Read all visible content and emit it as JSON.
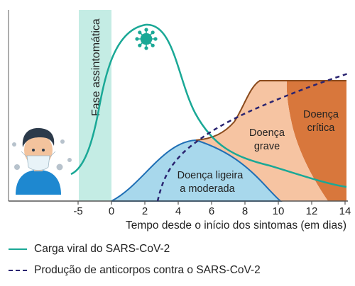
{
  "phase_label": "Fase assintomática",
  "regions": {
    "mild": [
      "Doença ligeira",
      "a moderada"
    ],
    "severe": [
      "Doença",
      "grave"
    ],
    "critical": [
      "Doença",
      "crítica"
    ]
  },
  "icons": {
    "virus": "virus-icon",
    "person": "masked-person-icon"
  },
  "x_ticks": [
    "-5",
    "0",
    "2",
    "4",
    "6",
    "8",
    "10",
    "12",
    "14"
  ],
  "x_axis_title": "Tempo desde o início dos sintomas (em dias)",
  "legend": {
    "viral_load": "Carga viral do SARS-CoV-2",
    "antibodies": "Produção de anticorpos contra o SARS-CoV-2"
  },
  "colors": {
    "viral_load": "#1aa896",
    "antibodies": "#2a2470",
    "phase_band": "#c4ece4",
    "mild_fill": "#a8d8ec",
    "mild_stroke": "#1f6fb5",
    "severe_fill": "#f6c4a2",
    "critical_fill": "#d8773c",
    "outline": "#8a4a1c"
  }
}
